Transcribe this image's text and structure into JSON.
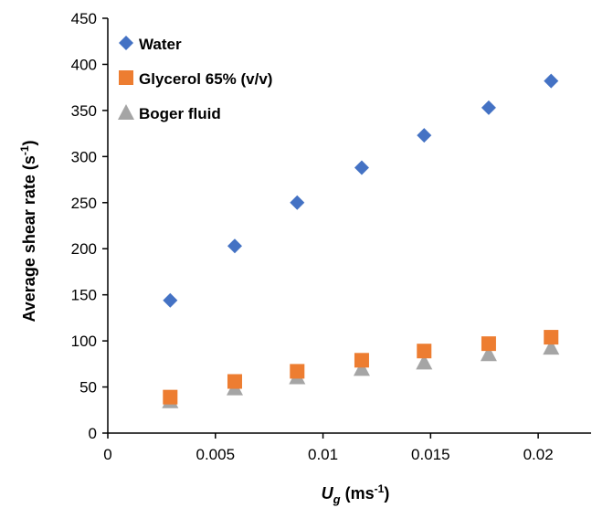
{
  "chart_data": {
    "type": "scatter",
    "title": "",
    "xlabel": {
      "main": "U",
      "sub": "g",
      "unit_pre": " (ms",
      "unit_sup": "-1",
      "unit_post": ")"
    },
    "ylabel": {
      "main": "Average shear rate (s",
      "sup": "-1",
      "post": ")"
    },
    "xlim": [
      0,
      0.0225
    ],
    "ylim": [
      0,
      450
    ],
    "xticks": [
      "0",
      "0.005",
      "0.01",
      "0.015",
      "0.02"
    ],
    "xtick_values": [
      0,
      0.005,
      0.01,
      0.015,
      0.02
    ],
    "yticks": [
      "0",
      "50",
      "100",
      "150",
      "200",
      "250",
      "300",
      "350",
      "400",
      "450"
    ],
    "ytick_values": [
      0,
      50,
      100,
      150,
      200,
      250,
      300,
      350,
      400,
      450
    ],
    "grid": false,
    "legend_position": "top-left",
    "x": [
      0.0029,
      0.0059,
      0.0088,
      0.0118,
      0.0147,
      0.0177,
      0.0206
    ],
    "series": [
      {
        "name": "Water",
        "marker": "diamond",
        "color": "#4472C4",
        "values": [
          144,
          203,
          250,
          288,
          323,
          353,
          382
        ]
      },
      {
        "name": "Glycerol 65% (v/v)",
        "marker": "square",
        "color": "#ED7D31",
        "values": [
          39,
          56,
          67,
          79,
          89,
          97,
          104
        ]
      },
      {
        "name": "Boger fluid",
        "marker": "triangle",
        "color": "#A5A5A5",
        "values": [
          35,
          49,
          61,
          70,
          77,
          86,
          93
        ]
      }
    ]
  }
}
